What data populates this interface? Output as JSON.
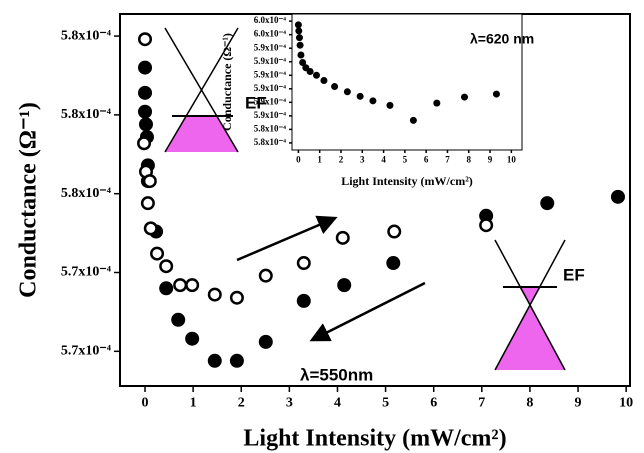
{
  "chart_data": [
    {
      "type": "scatter",
      "x_label": "Light Intensity (mW/cm²)",
      "y_label": "Conductance (Ω⁻¹)",
      "annotations": [
        "λ=550nm",
        "EF",
        "EF"
      ],
      "xlim": [
        -0.52,
        10.08
      ],
      "ylim": [
        0.0005689,
        0.0005807
      ],
      "xticks": [
        0,
        1,
        2,
        3,
        4,
        5,
        6,
        7,
        8,
        9,
        10
      ],
      "yticks": [
        {
          "value": 0.00058,
          "label": "5.8x10⁻⁴"
        },
        {
          "value": 0.0005775,
          "label": "5.8x10⁻⁴"
        },
        {
          "value": 0.000575,
          "label": "5.8x10⁻⁴"
        },
        {
          "value": 0.0005725,
          "label": "5.7x10⁻⁴"
        },
        {
          "value": 0.00057,
          "label": "5.7x10⁻⁴"
        }
      ],
      "series": [
        {
          "color": "#000000",
          "marker": "filled",
          "x": [
            0,
            0,
            0,
            0.02,
            0.04,
            0.06,
            0.06,
            0.23,
            0.44,
            0.69,
            0.98,
            1.45,
            1.91,
            2.51,
            3.3,
            4.14,
            5.16,
            7.09,
            8.36,
            9.83
          ],
          "values": [
            0.000579,
            0.0005782,
            0.0005776,
            0.0005772,
            0.0005768,
            0.0005759,
            0.0005754,
            0.0005738,
            0.000572,
            0.000571,
            0.0005704,
            0.0005697,
            0.0005697,
            0.0005703,
            0.0005716,
            0.0005721,
            0.0005728,
            0.0005743,
            0.0005747,
            0.0005749
          ]
        },
        {
          "color": "#000000",
          "marker": "open",
          "x": [
            0,
            -0.02,
            0.02,
            0.1,
            0.06,
            0.12,
            0.25,
            0.44,
            0.73,
            0.98,
            1.45,
            1.91,
            2.51,
            3.3,
            4.11,
            5.18,
            7.09
          ],
          "values": [
            0.0005799,
            0.0005766,
            0.0005757,
            0.0005754,
            0.0005747,
            0.0005739,
            0.0005731,
            0.0005727,
            0.0005721,
            0.0005721,
            0.0005718,
            0.0005717,
            0.0005724,
            0.0005728,
            0.0005736,
            0.0005738,
            0.000574
          ]
        }
      ]
    },
    {
      "type": "scatter",
      "x_label": "Light Intensity (mW/cm²)",
      "y_label": "Conductance (Ω⁻¹)",
      "annotations": [
        "λ=620 nm"
      ],
      "xlim": [
        -0.3,
        10.5
      ],
      "ylim": [
        0.00058086,
        0.00059895
      ],
      "xticks": [
        0,
        1,
        2,
        3,
        4,
        5,
        6,
        7,
        8,
        9,
        10
      ],
      "yticks": [
        {
          "value": 0.000598,
          "label": "6.0x10⁻⁴"
        },
        {
          "value": 0.0005962,
          "label": "6.0x10⁻⁴"
        },
        {
          "value": 0.0005944,
          "label": "5.9x10⁻⁴"
        },
        {
          "value": 0.0005926,
          "label": "5.9x10⁻⁴"
        },
        {
          "value": 0.0005908,
          "label": "5.9x10⁻⁴"
        },
        {
          "value": 0.000589,
          "label": "5.9x10⁻⁴"
        },
        {
          "value": 0.0005872,
          "label": "5.9x10⁻⁴"
        },
        {
          "value": 0.0005854,
          "label": "5.9x10⁻⁴"
        },
        {
          "value": 0.0005836,
          "label": "5.8x10⁻⁴"
        },
        {
          "value": 0.0005818,
          "label": "5.8x10⁻⁴"
        }
      ],
      "series": [
        {
          "color": "#000000",
          "marker": "filled",
          "x": [
            0,
            0.02,
            0.05,
            0.08,
            0.12,
            0.2,
            0.35,
            0.55,
            0.85,
            1.2,
            1.7,
            2.3,
            2.9,
            3.5,
            4.3,
            5.4,
            6.5,
            7.8,
            9.3
          ],
          "values": [
            0.0005975,
            0.0005967,
            0.0005958,
            0.0005948,
            0.0005935,
            0.0005925,
            0.0005918,
            0.0005913,
            0.0005908,
            0.0005901,
            0.0005893,
            0.0005886,
            0.000588,
            0.0005874,
            0.0005868,
            0.0005848,
            0.0005871,
            0.0005879,
            0.0005883
          ]
        }
      ]
    }
  ]
}
